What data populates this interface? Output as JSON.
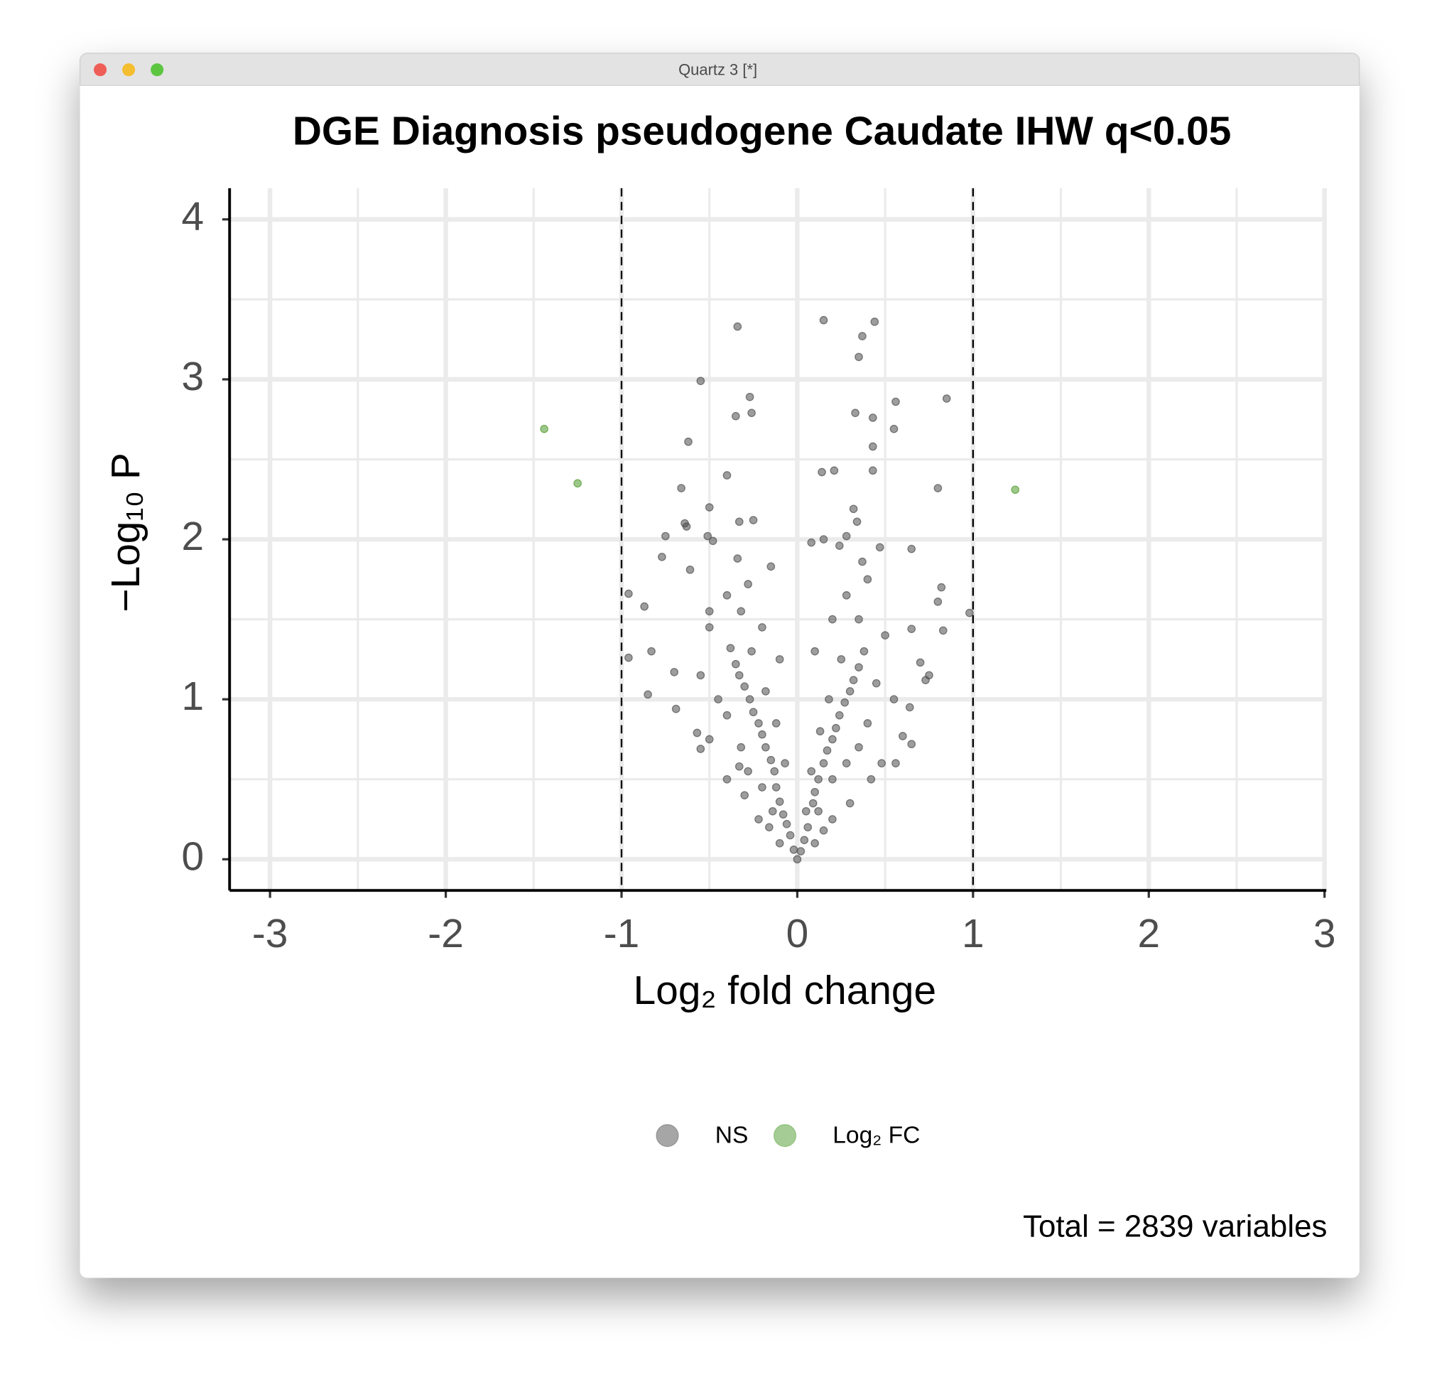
{
  "window_title": "Quartz 3 [*]",
  "chart_data": {
    "type": "scatter",
    "title": "DGE Diagnosis pseudogene Caudate IHW q<0.05",
    "x_label": "Log₂ fold change",
    "y_label": "−Log₁₀ P",
    "caption": "Total = 2839 variables",
    "xlim": [
      -3.23,
      3.01
    ],
    "ylim": [
      -0.195,
      4.195
    ],
    "xticks": [
      -3,
      -2,
      -1,
      0,
      1,
      2,
      3
    ],
    "yticks": [
      0,
      1,
      2,
      3,
      4
    ],
    "grid": true,
    "minor_grid": true,
    "vlines": [
      -1,
      1
    ],
    "legend": "bottom",
    "series": [
      {
        "name": "NS",
        "color": "#4d4d4d",
        "x": [
          -0.34,
          0.15,
          0.44,
          0.37,
          0.35,
          -0.55,
          -0.27,
          0.85,
          0.56,
          0.33,
          -0.26,
          -0.35,
          0.43,
          0.55,
          -0.62,
          0.43,
          0.14,
          0.21,
          0.43,
          -0.4,
          0.8,
          -0.66,
          -0.5,
          0.32,
          0.34,
          -0.25,
          -0.33,
          -0.64,
          -0.63,
          -0.75,
          0.28,
          -0.51,
          0.15,
          0.08,
          -0.48,
          0.65,
          0.47,
          0.24,
          -0.77,
          -0.34,
          -0.15,
          0.37,
          -0.61,
          0.82,
          -0.96,
          0.98,
          0.8,
          -0.87,
          -0.28,
          0.83,
          0.65,
          -0.96,
          -0.83,
          0.7,
          0.75,
          0.73,
          -0.7,
          -0.85,
          -0.69,
          0.64,
          -0.57,
          0.6,
          0.65,
          0.56,
          -0.55,
          -0.33,
          0,
          0.02,
          -0.02,
          0.04,
          -0.04,
          0.06,
          -0.06,
          0.05,
          -0.08,
          0.09,
          -0.1,
          0.1,
          -0.12,
          0.12,
          -0.13,
          0.15,
          -0.15,
          0.17,
          -0.18,
          0.2,
          -0.2,
          0.22,
          -0.22,
          0.24,
          -0.25,
          0.27,
          -0.27,
          0.3,
          -0.3,
          0.32,
          -0.33,
          0.35,
          -0.35,
          0.38,
          -0.38,
          0.12,
          -0.14,
          0.2,
          -0.2,
          0.28,
          -0.28,
          0.35,
          -0.32,
          0.4,
          -0.4,
          0.08,
          -0.07,
          0.13,
          -0.12,
          0.18,
          -0.18,
          0.45,
          -0.45,
          0.25,
          -0.26,
          0.42,
          -0.4,
          0.3,
          -0.3,
          0.2,
          -0.22,
          0.15,
          -0.16,
          0.1,
          -0.1,
          0.5,
          -0.5,
          0.35,
          -0.32,
          0.2,
          -0.2,
          0.48,
          -0.5,
          0.55,
          -0.55,
          0.28,
          -0.4,
          0.4,
          -0.5,
          0.1,
          -0.1
        ],
        "y": [
          3.33,
          3.37,
          3.36,
          3.27,
          3.14,
          2.99,
          2.89,
          2.88,
          2.86,
          2.79,
          2.79,
          2.77,
          2.76,
          2.69,
          2.61,
          2.58,
          2.42,
          2.43,
          2.43,
          2.4,
          2.32,
          2.32,
          2.2,
          2.19,
          2.11,
          2.12,
          2.11,
          2.1,
          2.08,
          2.02,
          2.02,
          2.02,
          2.0,
          1.98,
          1.99,
          1.94,
          1.95,
          1.96,
          1.89,
          1.88,
          1.83,
          1.86,
          1.81,
          1.7,
          1.66,
          1.54,
          1.61,
          1.58,
          1.72,
          1.43,
          1.44,
          1.26,
          1.3,
          1.23,
          1.15,
          1.12,
          1.17,
          1.03,
          0.94,
          0.95,
          0.79,
          0.77,
          0.72,
          0.6,
          0.69,
          0.58,
          0,
          0.05,
          0.06,
          0.12,
          0.15,
          0.2,
          0.22,
          0.3,
          0.28,
          0.35,
          0.36,
          0.42,
          0.45,
          0.5,
          0.55,
          0.6,
          0.62,
          0.68,
          0.7,
          0.75,
          0.78,
          0.82,
          0.85,
          0.9,
          0.92,
          0.98,
          1.0,
          1.05,
          1.08,
          1.12,
          1.15,
          1.2,
          1.22,
          1.3,
          1.32,
          0.3,
          0.3,
          0.5,
          0.45,
          0.6,
          0.55,
          0.7,
          0.7,
          0.85,
          0.9,
          0.55,
          0.6,
          0.8,
          0.85,
          1.0,
          1.05,
          1.1,
          1.0,
          1.25,
          1.3,
          0.5,
          0.5,
          0.35,
          0.4,
          0.25,
          0.25,
          0.18,
          0.2,
          0.1,
          0.1,
          1.4,
          1.45,
          1.5,
          1.55,
          1.5,
          1.45,
          0.6,
          0.75,
          1.0,
          1.15,
          1.65,
          1.65,
          1.75,
          1.55,
          1.3,
          1.25
        ]
      },
      {
        "name": "Log₂ FC",
        "color": "#4c9a2a",
        "x": [
          -1.44,
          -1.25,
          1.24
        ],
        "y": [
          2.69,
          2.35,
          2.31
        ]
      }
    ]
  }
}
